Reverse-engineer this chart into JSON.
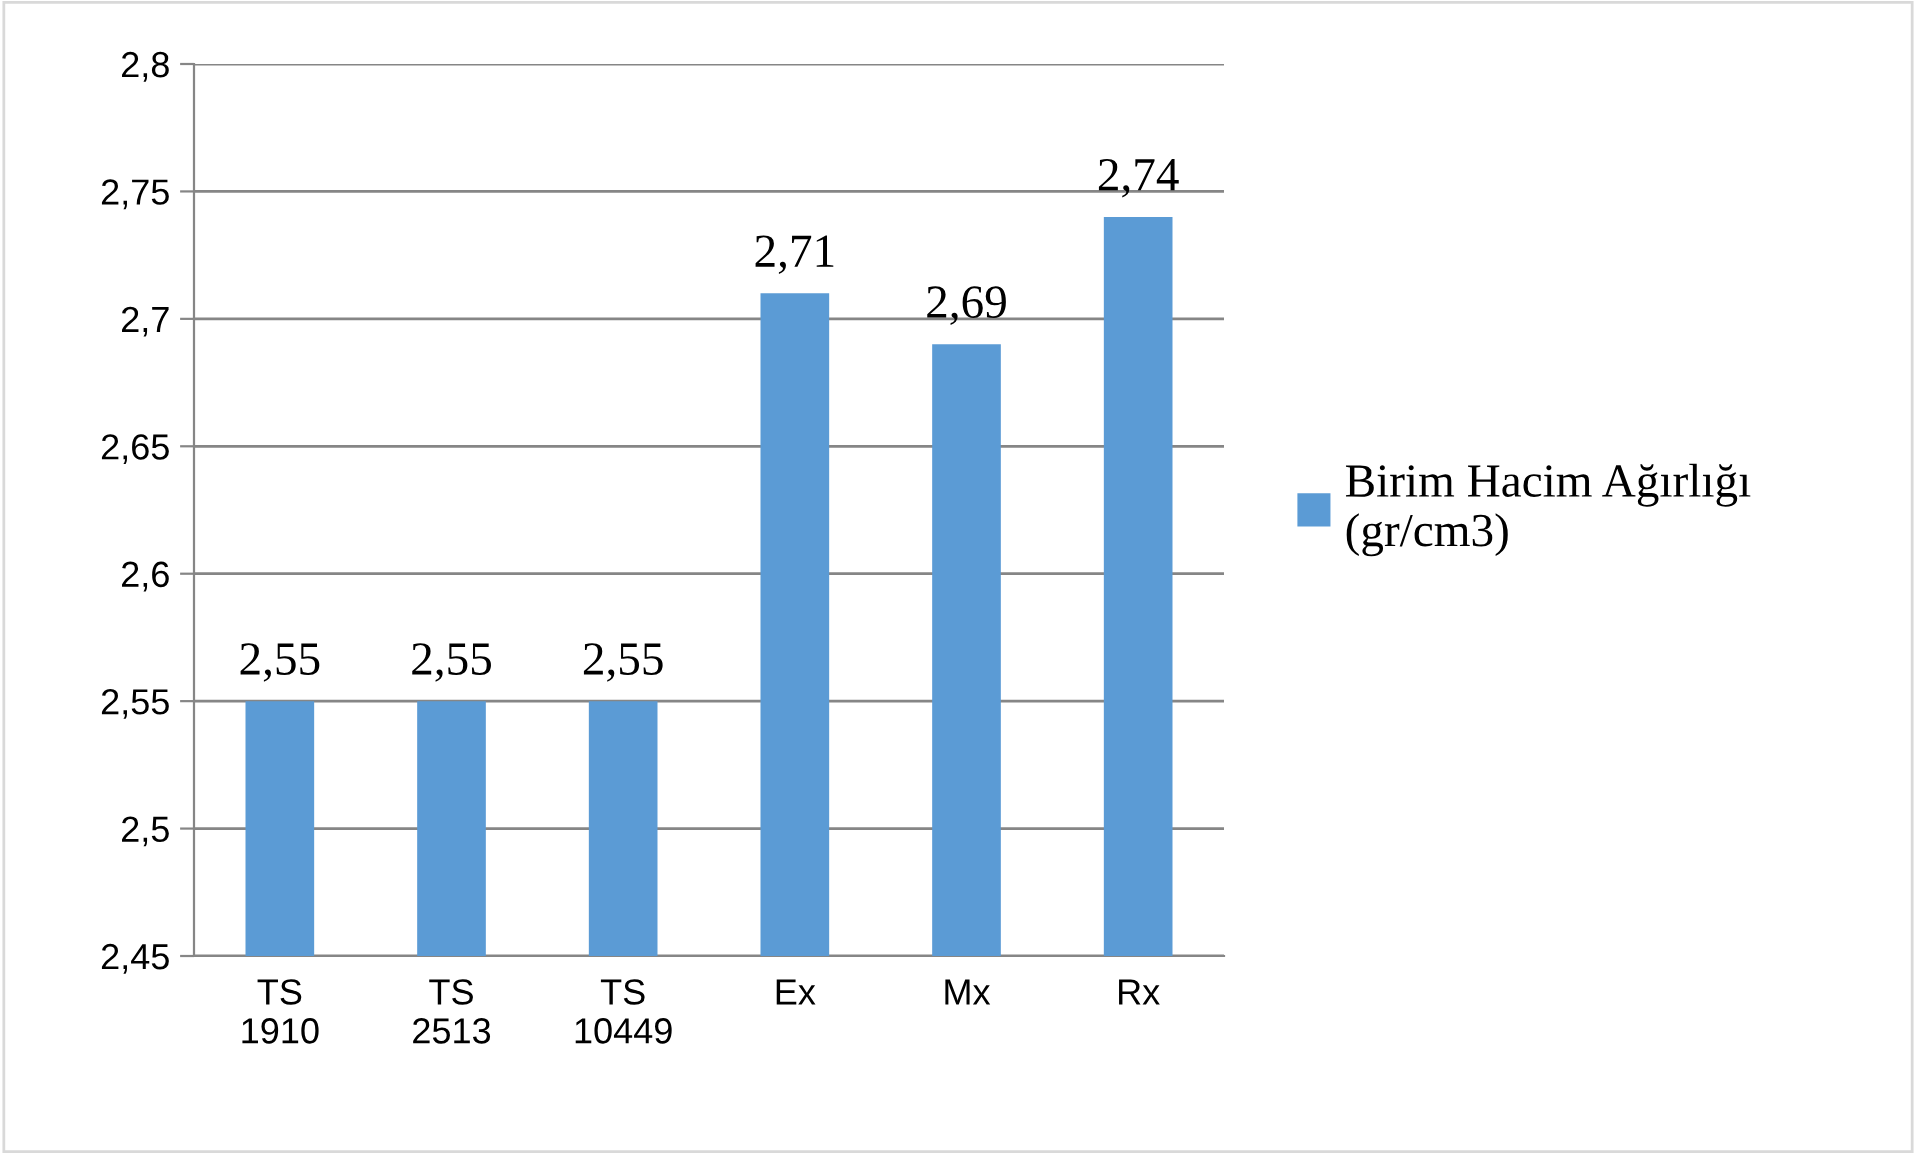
{
  "chart_data": {
    "type": "bar",
    "categories": [
      "TS\n1910",
      "TS\n2513",
      "TS\n10449",
      "Ex",
      "Mx",
      "Rx"
    ],
    "series": [
      {
        "name": "Birim Hacim Ağırlığı\n(gr/cm3)",
        "color": "#5b9bd5",
        "values": [
          2.55,
          2.55,
          2.55,
          2.71,
          2.69,
          2.74
        ],
        "value_labels": [
          "2,55",
          "2,55",
          "2,55",
          "2,71",
          "2,69",
          "2,74"
        ]
      }
    ],
    "ylim": [
      2.45,
      2.8
    ],
    "yticks": [
      {
        "value": 2.45,
        "label": "2,45"
      },
      {
        "value": 2.5,
        "label": "2,5"
      },
      {
        "value": 2.55,
        "label": "2,55"
      },
      {
        "value": 2.6,
        "label": "2,6"
      },
      {
        "value": 2.65,
        "label": "2,65"
      },
      {
        "value": 2.7,
        "label": "2,7"
      },
      {
        "value": 2.75,
        "label": "2,75"
      },
      {
        "value": 2.8,
        "label": "2,8"
      }
    ],
    "grid": "y",
    "legend": "right"
  }
}
